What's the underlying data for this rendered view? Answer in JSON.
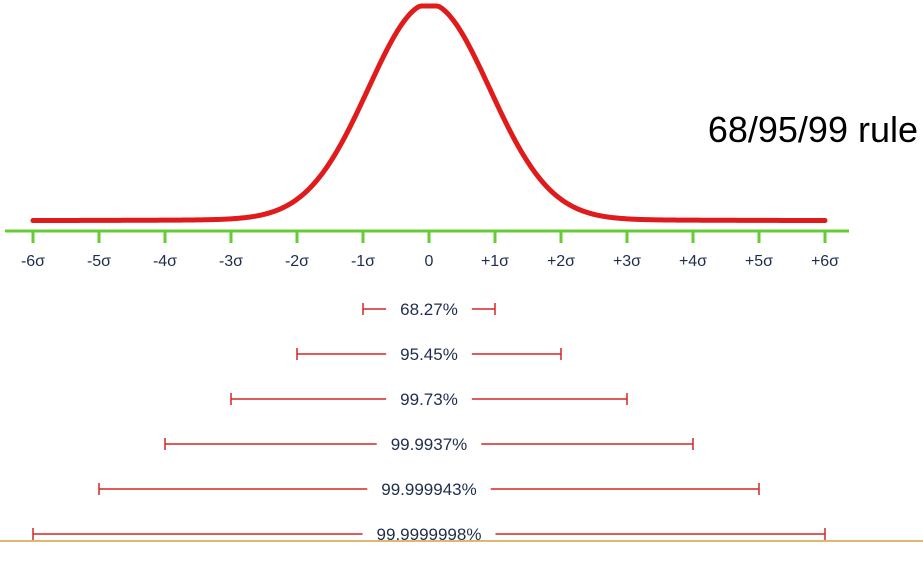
{
  "title": "68/95/99 rule",
  "colors": {
    "curve": "#e01b1b",
    "axis": "#66cc33",
    "bracket": "#d62626",
    "label": "#1f2d4d",
    "bottom_rule": "#d4a040"
  },
  "chart_data": {
    "type": "line",
    "curve": "normal-distribution",
    "x_range": [
      -6,
      6
    ],
    "tick_values": [
      -6,
      -5,
      -4,
      -3,
      -2,
      -1,
      0,
      1,
      2,
      3,
      4,
      5,
      6
    ],
    "tick_labels": [
      "-6σ",
      "-5σ",
      "-4σ",
      "-3σ",
      "-2σ",
      "-1σ",
      "0",
      "+1σ",
      "+2σ",
      "+3σ",
      "+4σ",
      "+5σ",
      "+6σ"
    ],
    "ranges": [
      {
        "sigma": 1,
        "label": "68.27%"
      },
      {
        "sigma": 2,
        "label": "95.45%"
      },
      {
        "sigma": 3,
        "label": "99.73%"
      },
      {
        "sigma": 4,
        "label": "99.9937%"
      },
      {
        "sigma": 5,
        "label": "99.999943%"
      },
      {
        "sigma": 6,
        "label": "99.9999998%"
      }
    ]
  }
}
